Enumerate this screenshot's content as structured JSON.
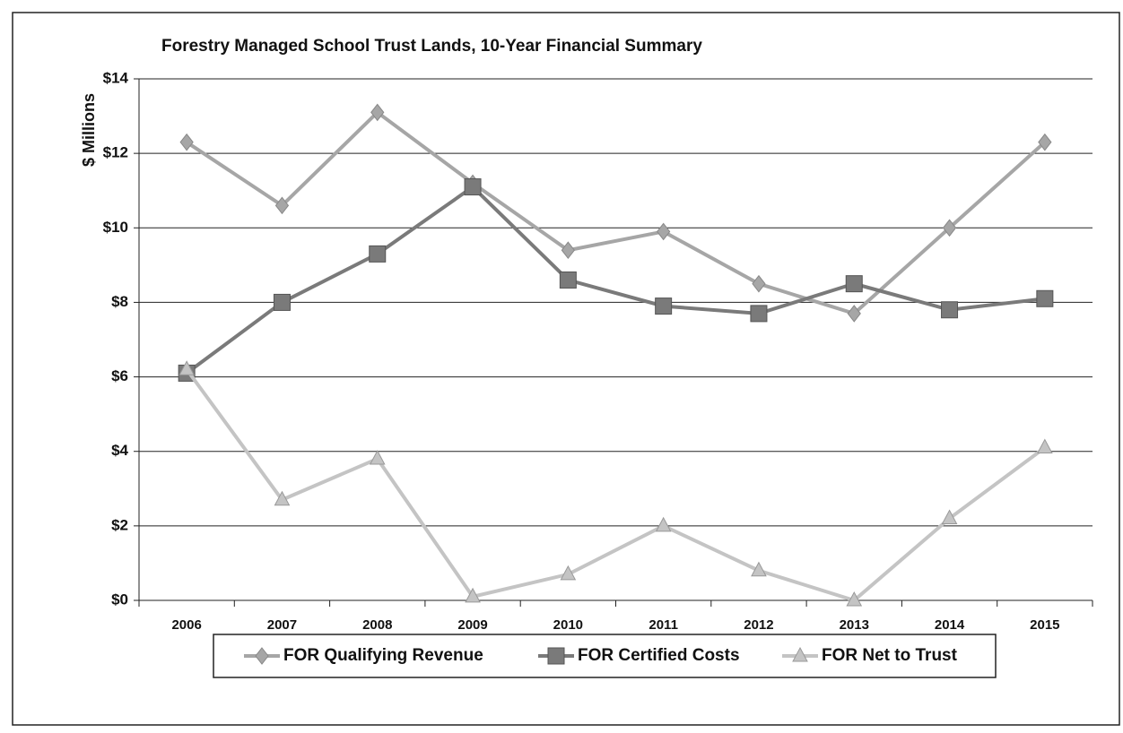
{
  "chart_data": {
    "type": "line",
    "title": "Forestry Managed School Trust Lands, 10-Year Financial Summary",
    "y_label": "$ Millions",
    "categories": [
      "2006",
      "2007",
      "2008",
      "2009",
      "2010",
      "2011",
      "2012",
      "2013",
      "2014",
      "2015"
    ],
    "series": [
      {
        "name": "FOR Qualifying Revenue",
        "color": "#a6a6a6",
        "marker": "diamond",
        "values": [
          12.3,
          10.6,
          13.1,
          11.2,
          9.4,
          9.9,
          8.5,
          7.7,
          10.0,
          12.3
        ]
      },
      {
        "name": "FOR Certified Costs",
        "color": "#7a7a7a",
        "marker": "square",
        "values": [
          6.1,
          8.0,
          9.3,
          11.1,
          8.6,
          7.9,
          7.7,
          8.5,
          7.8,
          8.1
        ]
      },
      {
        "name": "FOR Net  to Trust",
        "color": "#c4c4c4",
        "marker": "triangle",
        "values": [
          6.2,
          2.7,
          3.8,
          0.1,
          0.7,
          2.0,
          0.8,
          0.0,
          2.2,
          4.1
        ]
      }
    ],
    "ylim": [
      0,
      14
    ],
    "yticks": [
      {
        "value": 0,
        "label": "$0"
      },
      {
        "value": 2,
        "label": "$2"
      },
      {
        "value": 4,
        "label": "$4"
      },
      {
        "value": 6,
        "label": "$6"
      },
      {
        "value": 8,
        "label": "$8"
      },
      {
        "value": 10,
        "label": "$10"
      },
      {
        "value": 12,
        "label": "$12"
      },
      {
        "value": 14,
        "label": "$14"
      }
    ],
    "grid": true,
    "legend": "bottom"
  }
}
